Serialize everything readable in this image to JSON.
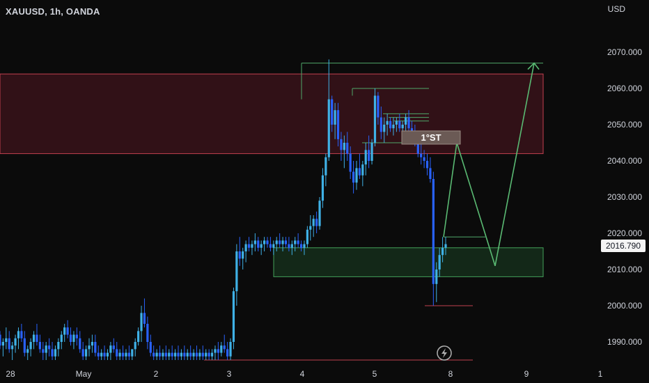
{
  "header": {
    "symbol": "XAUUSD, 1h, OANDA",
    "currency": "USD"
  },
  "last_price": "2016.790",
  "colors": {
    "up": "#3fb1e6",
    "down": "#2962ff",
    "bg": "#0b0b0b",
    "supply": "#c2404f",
    "demand": "#43a05a",
    "path": "#5aba73"
  },
  "annotation": {
    "label": "1°ST"
  },
  "chart_data": {
    "type": "candlestick",
    "title": "XAUUSD, 1h, OANDA",
    "xlabel": "",
    "ylabel": "USD",
    "ylim": [
      1984,
      2078
    ],
    "y_ticks": [
      "1990.000",
      "2000.000",
      "2010.000",
      "2020.000",
      "2030.000",
      "2040.000",
      "2050.000",
      "2060.000",
      "2070.000"
    ],
    "x_ticks": [
      "28",
      "May",
      "2",
      "3",
      "4",
      "5",
      "8",
      "9",
      "1"
    ],
    "ohlc": [
      [
        1992,
        1993,
        1988,
        1989
      ],
      [
        1989,
        1991,
        1986,
        1990
      ],
      [
        1990,
        1994,
        1988,
        1991
      ],
      [
        1991,
        1993,
        1987,
        1988
      ],
      [
        1988,
        1990,
        1985,
        1989
      ],
      [
        1989,
        1992,
        1987,
        1991
      ],
      [
        1991,
        1994,
        1988,
        1993
      ],
      [
        1993,
        1995,
        1990,
        1991
      ],
      [
        1991,
        1993,
        1986,
        1987
      ],
      [
        1987,
        1989,
        1985,
        1988
      ],
      [
        1988,
        1991,
        1986,
        1990
      ],
      [
        1990,
        1993,
        1988,
        1992
      ],
      [
        1992,
        1995,
        1989,
        1990
      ],
      [
        1990,
        1992,
        1987,
        1988
      ],
      [
        1988,
        1990,
        1985,
        1987
      ],
      [
        1987,
        1990,
        1985,
        1989
      ],
      [
        1989,
        1991,
        1986,
        1988
      ],
      [
        1988,
        1990,
        1985,
        1986
      ],
      [
        1986,
        1989,
        1985,
        1988
      ],
      [
        1988,
        1991,
        1986,
        1990
      ],
      [
        1990,
        1993,
        1988,
        1992
      ],
      [
        1992,
        1995,
        1990,
        1994
      ],
      [
        1994,
        1996,
        1991,
        1992
      ],
      [
        1992,
        1994,
        1989,
        1990
      ],
      [
        1990,
        1993,
        1988,
        1992
      ],
      [
        1992,
        1994,
        1989,
        1991
      ],
      [
        1991,
        1993,
        1987,
        1988
      ],
      [
        1988,
        1990,
        1985,
        1986
      ],
      [
        1986,
        1989,
        1985,
        1988
      ],
      [
        1988,
        1991,
        1986,
        1989
      ],
      [
        1989,
        1992,
        1987,
        1990
      ],
      [
        1990,
        1992,
        1986,
        1987
      ],
      [
        1987,
        1989,
        1985,
        1986
      ],
      [
        1986,
        1988,
        1985,
        1987
      ],
      [
        1987,
        1989,
        1985,
        1986
      ],
      [
        1986,
        1988,
        1985,
        1987
      ],
      [
        1987,
        1990,
        1985,
        1989
      ],
      [
        1989,
        1991,
        1987,
        1988
      ],
      [
        1988,
        1990,
        1985,
        1986
      ],
      [
        1986,
        1988,
        1985,
        1987
      ],
      [
        1987,
        1989,
        1985,
        1986
      ],
      [
        1986,
        1988,
        1985,
        1987
      ],
      [
        1987,
        1989,
        1985,
        1986
      ],
      [
        1986,
        1988,
        1985,
        1988
      ],
      [
        1988,
        1991,
        1986,
        1990
      ],
      [
        1990,
        1994,
        1989,
        1993
      ],
      [
        1993,
        2000,
        1990,
        1998
      ],
      [
        1998,
        2002,
        1994,
        1995
      ],
      [
        1995,
        1997,
        1988,
        1990
      ],
      [
        1990,
        1992,
        1986,
        1987
      ],
      [
        1987,
        1989,
        1985,
        1986
      ],
      [
        1986,
        1988,
        1985,
        1987
      ],
      [
        1987,
        1989,
        1985,
        1986
      ],
      [
        1986,
        1988,
        1985,
        1987
      ],
      [
        1987,
        1989,
        1985,
        1986
      ],
      [
        1986,
        1988,
        1985,
        1987
      ],
      [
        1987,
        1989,
        1985,
        1986
      ],
      [
        1986,
        1988,
        1985,
        1987
      ],
      [
        1987,
        1989,
        1985,
        1986
      ],
      [
        1986,
        1988,
        1985,
        1987
      ],
      [
        1987,
        1989,
        1985,
        1986
      ],
      [
        1986,
        1988,
        1985,
        1987
      ],
      [
        1987,
        1989,
        1985,
        1986
      ],
      [
        1986,
        1988,
        1985,
        1987
      ],
      [
        1987,
        1989,
        1985,
        1986
      ],
      [
        1986,
        1988,
        1985,
        1987
      ],
      [
        1987,
        1989,
        1985,
        1986
      ],
      [
        1986,
        1988,
        1985,
        1987
      ],
      [
        1987,
        1988,
        1985,
        1986
      ],
      [
        1986,
        1988,
        1985,
        1987
      ],
      [
        1987,
        1989,
        1985,
        1988
      ],
      [
        1988,
        1990,
        1985,
        1987
      ],
      [
        1987,
        1990,
        1986,
        1989
      ],
      [
        1989,
        1992,
        1987,
        1988
      ],
      [
        1988,
        1990,
        1985,
        1986
      ],
      [
        1986,
        1991,
        1985,
        1990
      ],
      [
        1990,
        2005,
        1988,
        2004
      ],
      [
        2004,
        2017,
        2000,
        2015
      ],
      [
        2015,
        2019,
        2011,
        2013
      ],
      [
        2013,
        2016,
        2010,
        2015
      ],
      [
        2015,
        2018,
        2012,
        2017
      ],
      [
        2017,
        2019,
        2015,
        2016
      ],
      [
        2016,
        2018,
        2014,
        2017
      ],
      [
        2017,
        2020,
        2015,
        2018
      ],
      [
        2018,
        2019,
        2015,
        2016
      ],
      [
        2016,
        2018,
        2014,
        2017
      ],
      [
        2017,
        2019,
        2015,
        2018
      ],
      [
        2018,
        2019,
        2016,
        2017
      ],
      [
        2017,
        2019,
        2015,
        2016
      ],
      [
        2016,
        2018,
        2014,
        2017
      ],
      [
        2017,
        2019,
        2015,
        2018
      ],
      [
        2018,
        2020,
        2016,
        2017
      ],
      [
        2017,
        2019,
        2015,
        2018
      ],
      [
        2018,
        2019,
        2016,
        2017
      ],
      [
        2017,
        2019,
        2015,
        2016
      ],
      [
        2016,
        2018,
        2014,
        2017
      ],
      [
        2017,
        2019,
        2015,
        2018
      ],
      [
        2018,
        2020,
        2016,
        2017
      ],
      [
        2017,
        2018,
        2015,
        2016
      ],
      [
        2016,
        2018,
        2014,
        2017
      ],
      [
        2017,
        2022,
        2016,
        2021
      ],
      [
        2021,
        2025,
        2018,
        2022
      ],
      [
        2022,
        2025,
        2019,
        2024
      ],
      [
        2024,
        2026,
        2020,
        2022
      ],
      [
        2022,
        2030,
        2021,
        2029
      ],
      [
        2029,
        2038,
        2027,
        2036
      ],
      [
        2036,
        2042,
        2033,
        2041
      ],
      [
        2041,
        2068,
        2040,
        2057
      ],
      [
        2057,
        2058,
        2048,
        2050
      ],
      [
        2050,
        2056,
        2046,
        2054
      ],
      [
        2054,
        2056,
        2044,
        2046
      ],
      [
        2046,
        2048,
        2040,
        2043
      ],
      [
        2043,
        2047,
        2038,
        2045
      ],
      [
        2045,
        2048,
        2040,
        2042
      ],
      [
        2042,
        2044,
        2035,
        2037
      ],
      [
        2037,
        2040,
        2031,
        2034
      ],
      [
        2034,
        2040,
        2032,
        2038
      ],
      [
        2038,
        2042,
        2035,
        2036
      ],
      [
        2036,
        2040,
        2033,
        2039
      ],
      [
        2039,
        2045,
        2036,
        2043
      ],
      [
        2043,
        2047,
        2038,
        2040
      ],
      [
        2040,
        2046,
        2039,
        2045
      ],
      [
        2045,
        2060,
        2044,
        2058
      ],
      [
        2058,
        2059,
        2050,
        2052
      ],
      [
        2052,
        2055,
        2046,
        2048
      ],
      [
        2048,
        2052,
        2045,
        2050
      ],
      [
        2050,
        2053,
        2047,
        2051
      ],
      [
        2051,
        2052,
        2048,
        2049
      ],
      [
        2049,
        2052,
        2047,
        2050
      ],
      [
        2050,
        2052,
        2048,
        2051
      ],
      [
        2051,
        2053,
        2048,
        2049
      ],
      [
        2049,
        2051,
        2047,
        2050
      ],
      [
        2050,
        2053,
        2048,
        2052
      ],
      [
        2052,
        2054,
        2048,
        2049
      ],
      [
        2049,
        2051,
        2046,
        2048
      ],
      [
        2048,
        2050,
        2044,
        2046
      ],
      [
        2046,
        2048,
        2041,
        2042
      ],
      [
        2042,
        2045,
        2039,
        2041
      ],
      [
        2041,
        2043,
        2038,
        2040
      ],
      [
        2040,
        2042,
        2036,
        2038
      ],
      [
        2038,
        2041,
        2034,
        2035
      ],
      [
        2035,
        2037,
        2000,
        2006
      ],
      [
        2006,
        2012,
        2001,
        2010
      ],
      [
        2010,
        2016,
        2008,
        2014
      ],
      [
        2014,
        2019,
        2012,
        2016
      ],
      [
        2016,
        2019,
        2014,
        2017
      ]
    ],
    "zones": [
      {
        "name": "supply",
        "top": 2064,
        "bottom": 2042
      },
      {
        "name": "demand",
        "top": 2016,
        "bottom": 2008
      }
    ],
    "levels": [
      2067,
      2060,
      2053,
      2052,
      2051,
      2019,
      2000,
      1985
    ],
    "projection_path": [
      2019,
      2045,
      2011,
      2067
    ]
  }
}
